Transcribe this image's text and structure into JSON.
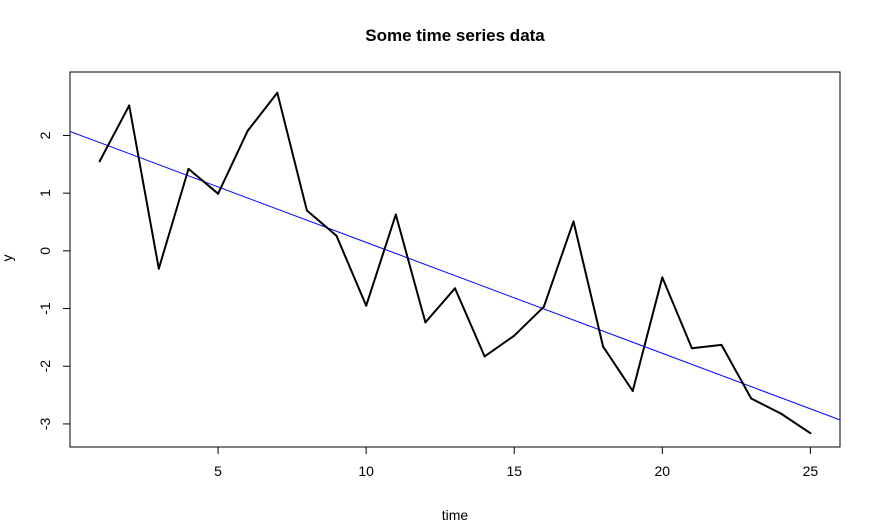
{
  "chart_data": {
    "type": "line",
    "title": "Some time series data",
    "xlabel": "time",
    "ylabel": "y",
    "xlim": [
      0,
      26
    ],
    "ylim": [
      -3.4,
      3.1
    ],
    "x_ticks": [
      5,
      10,
      15,
      20,
      25
    ],
    "y_ticks": [
      -3,
      -2,
      -1,
      0,
      1,
      2
    ],
    "grid": false,
    "series": [
      {
        "x": [
          1,
          2,
          3,
          4,
          5,
          6,
          7,
          8,
          9,
          10,
          11,
          12,
          13,
          14,
          15,
          16,
          17,
          18,
          19,
          20,
          21,
          22,
          23,
          24,
          25
        ],
        "y": [
          1.55,
          2.52,
          -0.31,
          1.42,
          0.99,
          2.08,
          2.74,
          0.7,
          0.26,
          -0.95,
          0.63,
          -1.24,
          -0.65,
          -1.83,
          -1.47,
          -0.97,
          0.51,
          -1.66,
          -2.43,
          -0.46,
          -1.69,
          -1.63,
          -2.56,
          -2.82,
          -3.16
        ],
        "color": "#000000"
      }
    ],
    "trend_line": {
      "x": [
        0,
        26
      ],
      "y": [
        2.07,
        -2.93
      ],
      "color": "#0000ff"
    }
  }
}
